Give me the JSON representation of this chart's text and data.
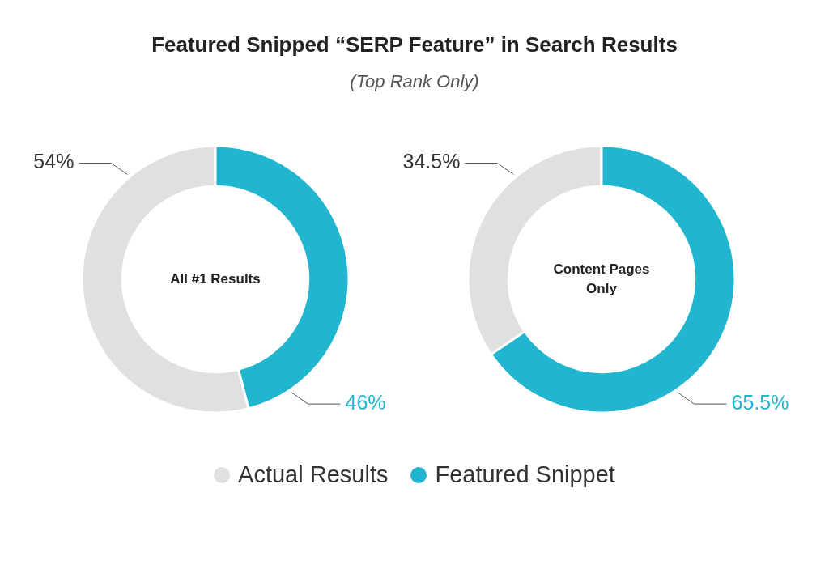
{
  "chart_data": [
    {
      "type": "donut",
      "title": "Featured Snipped “SERP Feature” in Search Results",
      "subtitle": "(Top Rank Only)",
      "annotations": [
        "All #1 Results"
      ],
      "categories": [
        null,
        null
      ],
      "values": [
        54,
        46
      ],
      "colors": [
        "#e0e0e0",
        "#22b5d0"
      ],
      "value_labels": [
        "54%",
        "46%"
      ]
    },
    {
      "type": "donut",
      "annotations": [
        "Content Pages Only"
      ],
      "categories": [
        "Actual Results",
        "Featured Snippet"
      ],
      "values": [
        34.5,
        65.5
      ],
      "colors": [
        "#e0e0e0",
        "#22b5d0"
      ],
      "value_labels": [
        "34.5%",
        "65.5%"
      ],
      "legend": "bottom"
    }
  ]
}
